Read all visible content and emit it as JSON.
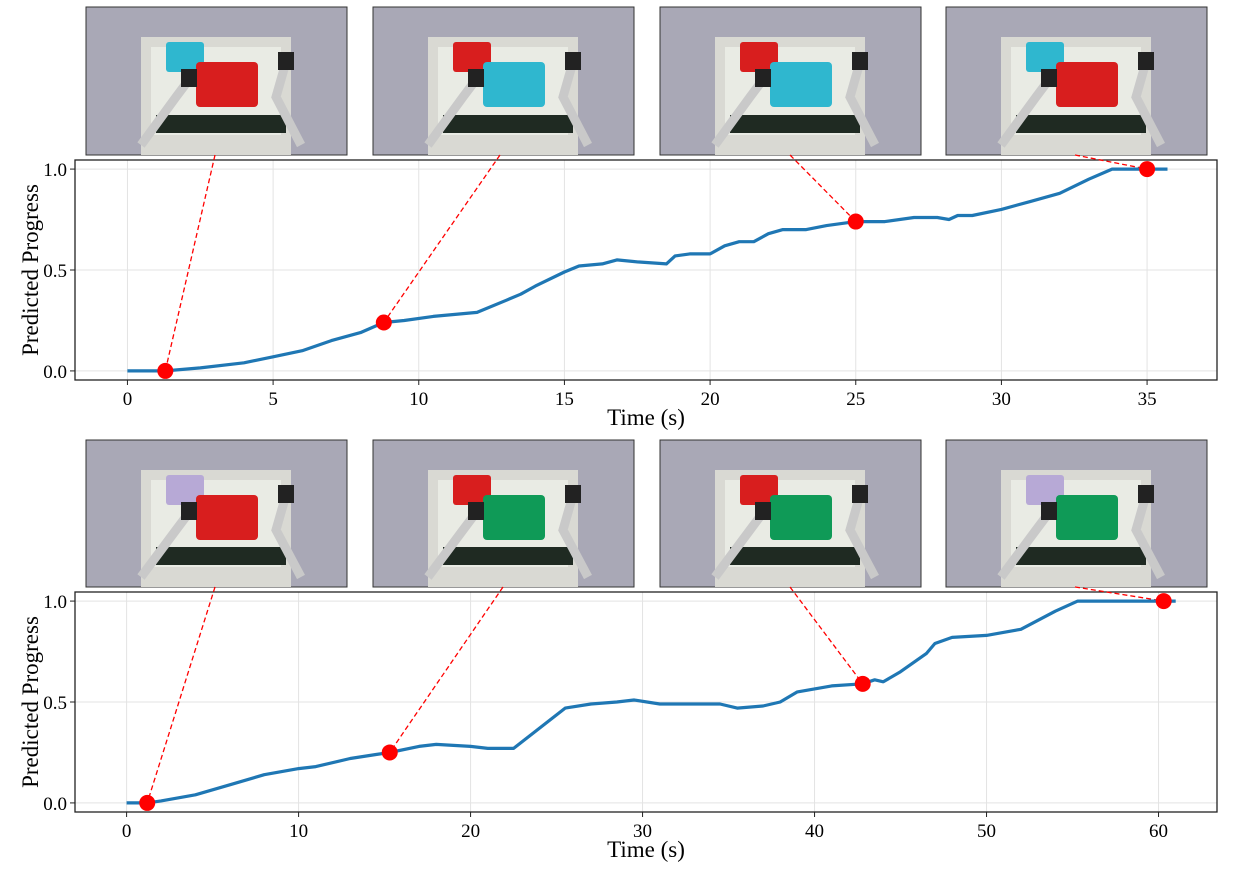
{
  "chart_data": [
    {
      "type": "line",
      "title": "",
      "xlabel": "Time (s)",
      "ylabel": "Predicted Progress",
      "xlim": [
        -1.8,
        37.4
      ],
      "ylim": [
        -0.045,
        1.045
      ],
      "xticks": [
        0,
        5,
        10,
        15,
        20,
        25,
        30,
        35
      ],
      "yticks": [
        0.0,
        0.5,
        1.0
      ],
      "ytick_labels": [
        "0.0",
        "0.5",
        "1.0"
      ],
      "grid": true,
      "series": [
        {
          "name": "progress",
          "color": "#1f77b4",
          "x": [
            0,
            1.3,
            2.5,
            4,
            5,
            6,
            7,
            8,
            8.8,
            9.5,
            10.5,
            12,
            13,
            13.5,
            14,
            15,
            15.5,
            16.3,
            16.8,
            17.5,
            18.5,
            18.8,
            19.3,
            20,
            20.5,
            21,
            21.5,
            22,
            22.5,
            23.3,
            24,
            25,
            26,
            27,
            27.8,
            28.2,
            28.5,
            29,
            30,
            31,
            32,
            33,
            33.8,
            35.7
          ],
          "y": [
            0,
            0,
            0.015,
            0.04,
            0.07,
            0.1,
            0.15,
            0.19,
            0.24,
            0.25,
            0.27,
            0.29,
            0.35,
            0.38,
            0.42,
            0.49,
            0.52,
            0.53,
            0.55,
            0.54,
            0.53,
            0.57,
            0.58,
            0.58,
            0.62,
            0.64,
            0.64,
            0.68,
            0.7,
            0.7,
            0.72,
            0.74,
            0.74,
            0.76,
            0.76,
            0.75,
            0.77,
            0.77,
            0.8,
            0.84,
            0.88,
            0.95,
            1.0,
            1.0
          ]
        }
      ],
      "markers": {
        "color": "#ff0000",
        "x": [
          1.3,
          8.8,
          25,
          35
        ],
        "y": [
          0,
          0.24,
          0.74,
          1.0
        ]
      },
      "thumbnails": [
        {
          "cloth": "#d81e1e",
          "cloth2": "#2fb7cf"
        },
        {
          "cloth": "#2fb7cf",
          "cloth2": "#d81e1e"
        },
        {
          "cloth": "#2fb7cf",
          "cloth2": "#d81e1e"
        },
        {
          "cloth": "#d81e1e",
          "cloth2": "#2fb7cf"
        }
      ]
    },
    {
      "type": "line",
      "title": "",
      "xlabel": "Time (s)",
      "ylabel": "Predicted Progress",
      "xlim": [
        -3.0,
        63.4
      ],
      "ylim": [
        -0.045,
        1.045
      ],
      "xticks": [
        0,
        10,
        20,
        30,
        40,
        50,
        60
      ],
      "yticks": [
        0.0,
        0.5,
        1.0
      ],
      "ytick_labels": [
        "0.0",
        "0.5",
        "1.0"
      ],
      "grid": true,
      "series": [
        {
          "name": "progress",
          "color": "#1f77b4",
          "x": [
            0,
            1.2,
            2,
            4,
            6,
            8,
            10,
            11,
            13,
            14.5,
            15.3,
            17,
            18,
            20,
            21,
            22.5,
            24,
            25.5,
            27,
            28.5,
            29.5,
            31,
            33,
            34.5,
            35.5,
            37,
            38,
            39,
            41,
            42.8,
            43.5,
            44,
            45,
            46.5,
            47,
            48,
            50,
            52,
            54,
            55.3,
            61
          ],
          "y": [
            0,
            0,
            0.01,
            0.04,
            0.09,
            0.14,
            0.17,
            0.18,
            0.22,
            0.24,
            0.25,
            0.28,
            0.29,
            0.28,
            0.27,
            0.27,
            0.37,
            0.47,
            0.49,
            0.5,
            0.51,
            0.49,
            0.49,
            0.49,
            0.47,
            0.48,
            0.5,
            0.55,
            0.58,
            0.59,
            0.61,
            0.6,
            0.65,
            0.74,
            0.79,
            0.82,
            0.83,
            0.86,
            0.95,
            1.0,
            1.0
          ]
        }
      ],
      "markers": {
        "color": "#ff0000",
        "x": [
          1.2,
          15.3,
          42.8,
          60.3
        ],
        "y": [
          0,
          0.25,
          0.59,
          1.0
        ]
      },
      "thumbnails": [
        {
          "cloth": "#d81e1e",
          "cloth2": "#b7a9d6"
        },
        {
          "cloth": "#0f9a57",
          "cloth2": "#d81e1e"
        },
        {
          "cloth": "#0f9a57",
          "cloth2": "#d81e1e"
        },
        {
          "cloth": "#0f9a57",
          "cloth2": "#b7a9d6"
        }
      ]
    }
  ]
}
